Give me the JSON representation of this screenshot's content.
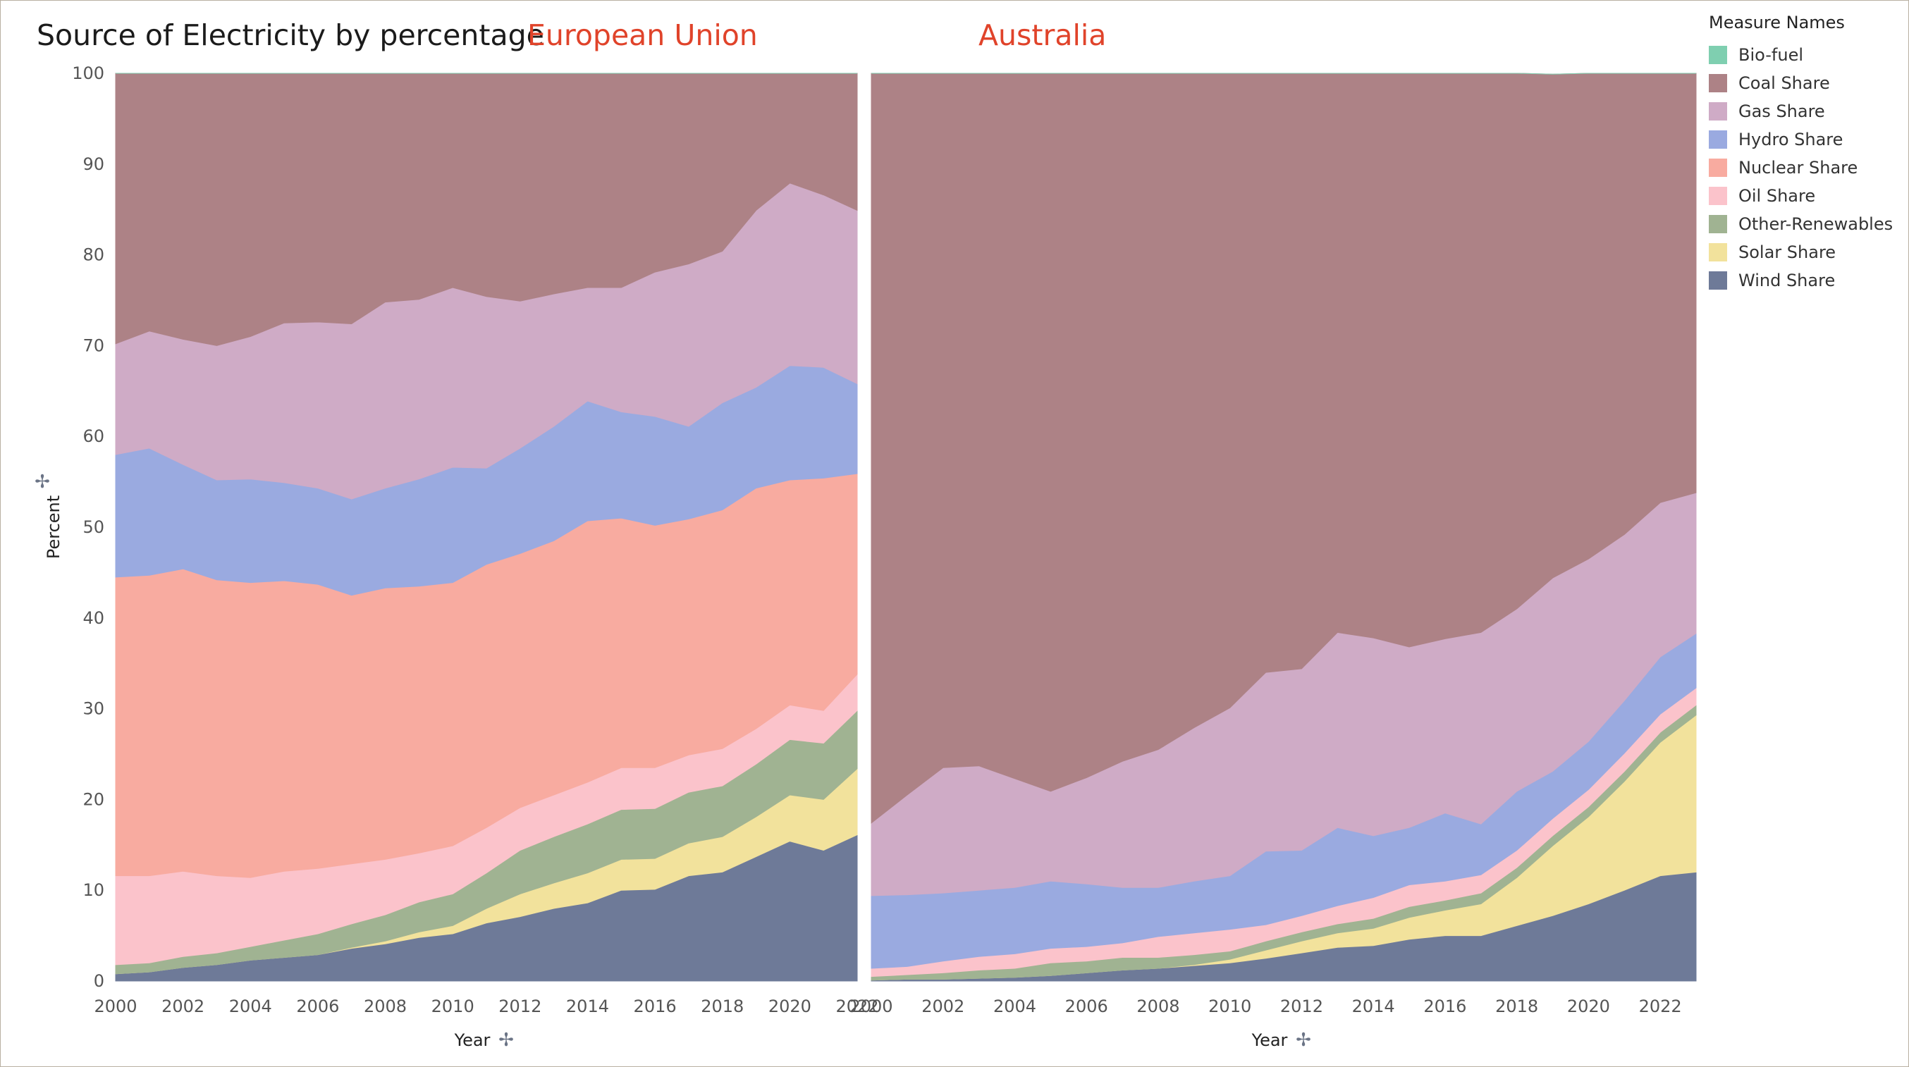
{
  "title": "Source of Electricity by percentage",
  "legend": {
    "title": "Measure Names",
    "items": [
      {
        "label": "Bio-fuel",
        "color": "#7fcfb0"
      },
      {
        "label": "Coal Share",
        "color": "#ad8286"
      },
      {
        "label": "Gas Share",
        "color": "#cfabc6"
      },
      {
        "label": "Hydro Share",
        "color": "#9aaae0"
      },
      {
        "label": "Nuclear Share",
        "color": "#f8aba0"
      },
      {
        "label": "Oil Share",
        "color": "#fbc3cb"
      },
      {
        "label": "Other-Renewables",
        "color": "#a0b392"
      },
      {
        "label": "Solar Share",
        "color": "#f2e29c"
      },
      {
        "label": "Wind Share",
        "color": "#6e7a98"
      }
    ]
  },
  "chart_data": [
    {
      "type": "area",
      "stacked": true,
      "title": "European Union",
      "xlabel": "Year",
      "ylabel": "Percent",
      "ylim": [
        0,
        100
      ],
      "yticks": [
        "0",
        "10",
        "20",
        "30",
        "40",
        "50",
        "60",
        "70",
        "80",
        "90",
        "100"
      ],
      "xticks": [
        "2000",
        "2002",
        "2004",
        "2006",
        "2008",
        "2010",
        "2012",
        "2014",
        "2016",
        "2018",
        "2020",
        "2022"
      ],
      "x": [
        2000,
        2001,
        2002,
        2003,
        2004,
        2005,
        2006,
        2007,
        2008,
        2009,
        2010,
        2011,
        2012,
        2013,
        2014,
        2015,
        2016,
        2017,
        2018,
        2019,
        2020,
        2021,
        2022
      ],
      "series": [
        {
          "name": "Wind Share",
          "color": "#6e7a98",
          "values": [
            0.8,
            1.0,
            1.5,
            1.8,
            2.3,
            2.6,
            2.9,
            3.6,
            4.1,
            4.8,
            5.2,
            6.4,
            7.1,
            8.0,
            8.6,
            10.0,
            10.1,
            11.6,
            12.0,
            13.7,
            15.4,
            14.4,
            16.1
          ]
        },
        {
          "name": "Solar Share",
          "color": "#f2e29c",
          "values": [
            0,
            0,
            0,
            0,
            0,
            0,
            0,
            0.1,
            0.3,
            0.6,
            0.9,
            1.6,
            2.5,
            2.8,
            3.3,
            3.4,
            3.4,
            3.6,
            3.9,
            4.4,
            5.1,
            5.6,
            7.3
          ]
        },
        {
          "name": "Other-Renewables",
          "color": "#a0b392",
          "values": [
            1.0,
            1.0,
            1.2,
            1.3,
            1.5,
            1.9,
            2.3,
            2.6,
            2.9,
            3.3,
            3.5,
            3.9,
            4.8,
            5.1,
            5.4,
            5.5,
            5.5,
            5.6,
            5.6,
            5.8,
            6.1,
            6.2,
            6.4
          ]
        },
        {
          "name": "Oil Share",
          "color": "#fbc3cb",
          "values": [
            9.8,
            9.6,
            9.4,
            8.5,
            7.6,
            7.6,
            7.2,
            6.6,
            6.1,
            5.4,
            5.3,
            5.0,
            4.7,
            4.6,
            4.6,
            4.6,
            4.5,
            4.1,
            4.1,
            3.9,
            3.8,
            3.6,
            4.0
          ]
        },
        {
          "name": "Nuclear Share",
          "color": "#f8aba0",
          "values": [
            32.9,
            33.1,
            33.3,
            32.6,
            32.5,
            32.0,
            31.3,
            29.6,
            29.9,
            29.4,
            29.0,
            29.0,
            28.0,
            28.0,
            28.8,
            27.5,
            26.7,
            26.0,
            26.3,
            26.5,
            24.8,
            25.6,
            22.1
          ]
        },
        {
          "name": "Hydro Share",
          "color": "#9aaae0",
          "values": [
            13.5,
            14.0,
            11.5,
            11.0,
            11.4,
            10.8,
            10.6,
            10.6,
            11.0,
            11.8,
            12.7,
            10.6,
            11.6,
            12.6,
            13.2,
            11.7,
            12.0,
            10.2,
            11.8,
            11.1,
            12.6,
            12.2,
            9.9
          ]
        },
        {
          "name": "Gas Share",
          "color": "#cfabc6",
          "values": [
            12.2,
            12.9,
            13.8,
            14.8,
            15.7,
            17.6,
            18.3,
            19.3,
            20.5,
            19.8,
            19.8,
            18.9,
            16.2,
            14.6,
            12.5,
            13.7,
            15.9,
            17.9,
            16.7,
            19.5,
            20.1,
            19.0,
            19.1
          ]
        },
        {
          "name": "Coal Share",
          "color": "#ad8286",
          "values": [
            29.8,
            28.4,
            29.3,
            30.0,
            29.0,
            27.5,
            27.4,
            27.6,
            25.2,
            24.9,
            23.6,
            24.6,
            25.1,
            24.3,
            23.6,
            23.6,
            21.9,
            21.0,
            19.6,
            15.1,
            12.1,
            13.4,
            15.1
          ]
        },
        {
          "name": "Bio-fuel",
          "color": "#7fcfb0",
          "values": [
            0,
            0,
            0,
            0,
            0,
            0,
            0,
            0,
            0,
            0,
            0,
            0,
            0,
            0,
            0,
            0,
            0,
            0,
            0,
            0,
            0,
            0,
            0
          ]
        }
      ]
    },
    {
      "type": "area",
      "stacked": true,
      "title": "Australia",
      "xlabel": "Year",
      "ylabel": "Percent",
      "ylim": [
        0,
        100
      ],
      "xticks": [
        "2000",
        "2002",
        "2004",
        "2006",
        "2008",
        "2010",
        "2012",
        "2014",
        "2016",
        "2018",
        "2020",
        "2022"
      ],
      "x": [
        2000,
        2001,
        2002,
        2003,
        2004,
        2005,
        2006,
        2007,
        2008,
        2009,
        2010,
        2011,
        2012,
        2013,
        2014,
        2015,
        2016,
        2017,
        2018,
        2019,
        2020,
        2021,
        2022,
        2023
      ],
      "series": [
        {
          "name": "Wind Share",
          "color": "#6e7a98",
          "values": [
            0.1,
            0.2,
            0.2,
            0.3,
            0.4,
            0.6,
            0.9,
            1.2,
            1.4,
            1.7,
            2.0,
            2.5,
            3.1,
            3.7,
            3.9,
            4.6,
            5.0,
            5.0,
            6.1,
            7.2,
            8.5,
            10.0,
            11.6,
            12.0
          ]
        },
        {
          "name": "Solar Share",
          "color": "#f2e29c",
          "values": [
            0,
            0,
            0,
            0,
            0,
            0,
            0,
            0,
            0,
            0.1,
            0.4,
            0.9,
            1.3,
            1.6,
            1.9,
            2.4,
            2.8,
            3.5,
            5.3,
            7.7,
            9.6,
            12.0,
            14.7,
            17.3
          ]
        },
        {
          "name": "Other-Renewables",
          "color": "#a0b392",
          "values": [
            0.4,
            0.5,
            0.7,
            0.9,
            1.0,
            1.4,
            1.3,
            1.4,
            1.2,
            1.1,
            0.9,
            1.0,
            1.0,
            1.0,
            1.1,
            1.2,
            1.1,
            1.2,
            1.1,
            1.1,
            1.1,
            1.1,
            1.1,
            1.1
          ]
        },
        {
          "name": "Oil Share",
          "color": "#fbc3cb",
          "values": [
            0.9,
            0.9,
            1.3,
            1.5,
            1.6,
            1.6,
            1.6,
            1.6,
            2.3,
            2.4,
            2.4,
            1.8,
            1.8,
            2.0,
            2.3,
            2.4,
            2.1,
            2.0,
            1.9,
            1.9,
            1.9,
            2.0,
            2.0,
            1.9
          ]
        },
        {
          "name": "Hydro Share",
          "color": "#9aaae0",
          "values": [
            8.0,
            7.9,
            7.5,
            7.3,
            7.3,
            7.4,
            6.9,
            6.1,
            5.4,
            5.7,
            5.9,
            8.1,
            7.2,
            8.6,
            6.8,
            6.3,
            7.5,
            5.6,
            6.5,
            5.2,
            5.3,
            5.8,
            6.3,
            6.0
          ]
        },
        {
          "name": "Gas Share",
          "color": "#cfabc6",
          "values": [
            8.0,
            11.0,
            13.8,
            13.7,
            12.0,
            9.9,
            11.7,
            13.9,
            15.2,
            16.9,
            18.5,
            19.7,
            20.0,
            21.5,
            21.8,
            19.9,
            19.2,
            21.1,
            20.1,
            21.3,
            20.1,
            18.3,
            17.0,
            15.5
          ]
        },
        {
          "name": "Coal Share",
          "color": "#ad8286",
          "values": [
            82.6,
            79.5,
            76.5,
            76.3,
            77.7,
            79.1,
            77.6,
            75.8,
            74.5,
            72.1,
            69.9,
            66.0,
            65.6,
            61.6,
            62.2,
            63.2,
            62.3,
            61.6,
            59.0,
            55.5,
            53.5,
            50.8,
            47.3,
            46.2
          ]
        },
        {
          "name": "Bio-fuel",
          "color": "#7fcfb0",
          "values": [
            0,
            0,
            0,
            0,
            0,
            0,
            0,
            0,
            0,
            0,
            0,
            0,
            0,
            0,
            0,
            0,
            0,
            0,
            0,
            0,
            0,
            0,
            0,
            0
          ]
        }
      ]
    }
  ]
}
